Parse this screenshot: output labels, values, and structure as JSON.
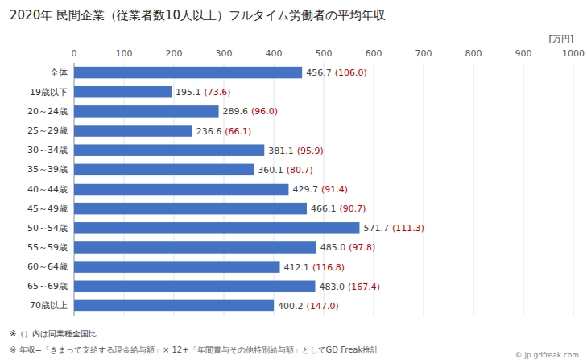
{
  "chart_data": {
    "type": "bar",
    "orientation": "horizontal",
    "title": "2020年 民間企業（従業者数10人以上）フルタイム労働者の平均年収",
    "xlabel": "[万円]",
    "categories": [
      "全体",
      "19歳以下",
      "20～24歳",
      "25～29歳",
      "30～34歳",
      "35～39歳",
      "40～44歳",
      "45～49歳",
      "50～54歳",
      "55～59歳",
      "60～64歳",
      "65～69歳",
      "70歳以上"
    ],
    "values": [
      456.7,
      195.1,
      289.6,
      236.6,
      381.1,
      360.1,
      429.7,
      466.1,
      571.7,
      485.0,
      412.1,
      483.0,
      400.2
    ],
    "value_labels": [
      "456.7",
      "195.1",
      "289.6",
      "236.6",
      "381.1",
      "360.1",
      "429.7",
      "466.1",
      "571.7",
      "485.0",
      "412.1",
      "483.0",
      "400.2"
    ],
    "ratio_labels": [
      "(106.0)",
      "(73.6)",
      "(96.0)",
      "(66.1)",
      "(95.9)",
      "(80.7)",
      "(91.4)",
      "(90.7)",
      "(111.3)",
      "(97.8)",
      "(116.8)",
      "(167.4)",
      "(147.0)"
    ],
    "ratio_color": "#C00000",
    "data_labels": true,
    "color": "#4472C4",
    "xlim": [
      0,
      1000
    ],
    "xticks": [
      0,
      100,
      200,
      300,
      400,
      500,
      600,
      700,
      800,
      900,
      1000
    ],
    "grid": true,
    "annotations": [
      "※（）内は同業種全国比",
      "※ 年収=「きまって支給する現金給与額」× 12+「年間賞与その他特別給与額」としてGD Freak推計",
      "© jp.gdfreak.com"
    ]
  }
}
